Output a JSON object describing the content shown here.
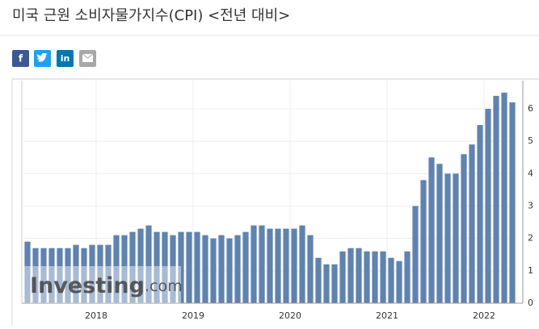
{
  "title": "미국 근원 소비자물가지수(CPI) <전년 대비>",
  "share": {
    "facebook": "f",
    "linkedin": "in"
  },
  "chart_data": {
    "type": "bar",
    "watermark": {
      "brand": "Investing",
      "suffix": ".com"
    },
    "categories": [
      null,
      null,
      null,
      null,
      null,
      null,
      null,
      null,
      null,
      "2018",
      null,
      null,
      null,
      null,
      null,
      null,
      null,
      null,
      null,
      null,
      null,
      "2019",
      null,
      null,
      null,
      null,
      null,
      null,
      null,
      null,
      null,
      null,
      null,
      "2020",
      null,
      null,
      null,
      null,
      null,
      null,
      null,
      null,
      null,
      null,
      null,
      "2021",
      null,
      null,
      null,
      null,
      null,
      null,
      null,
      null,
      null,
      null,
      null,
      "2022",
      null,
      null,
      null
    ],
    "values": [
      1.9,
      1.7,
      1.7,
      1.7,
      1.7,
      1.7,
      1.8,
      1.7,
      1.8,
      1.8,
      1.8,
      2.1,
      2.1,
      2.2,
      2.3,
      2.4,
      2.2,
      2.2,
      2.1,
      2.2,
      2.2,
      2.2,
      2.1,
      2.0,
      2.1,
      2.0,
      2.1,
      2.2,
      2.4,
      2.4,
      2.3,
      2.3,
      2.3,
      2.3,
      2.4,
      2.1,
      1.4,
      1.2,
      1.2,
      1.6,
      1.7,
      1.7,
      1.6,
      1.6,
      1.6,
      1.4,
      1.3,
      1.6,
      3.0,
      3.8,
      4.5,
      4.3,
      4.0,
      4.0,
      4.6,
      4.9,
      5.5,
      6.0,
      6.4,
      6.5,
      6.2
    ],
    "color": "#5f83b0",
    "ylim": [
      0,
      6.87
    ],
    "yticks": [
      0,
      1,
      2,
      3,
      4,
      5,
      6
    ],
    "grid": true,
    "y_axis_side": "right"
  }
}
